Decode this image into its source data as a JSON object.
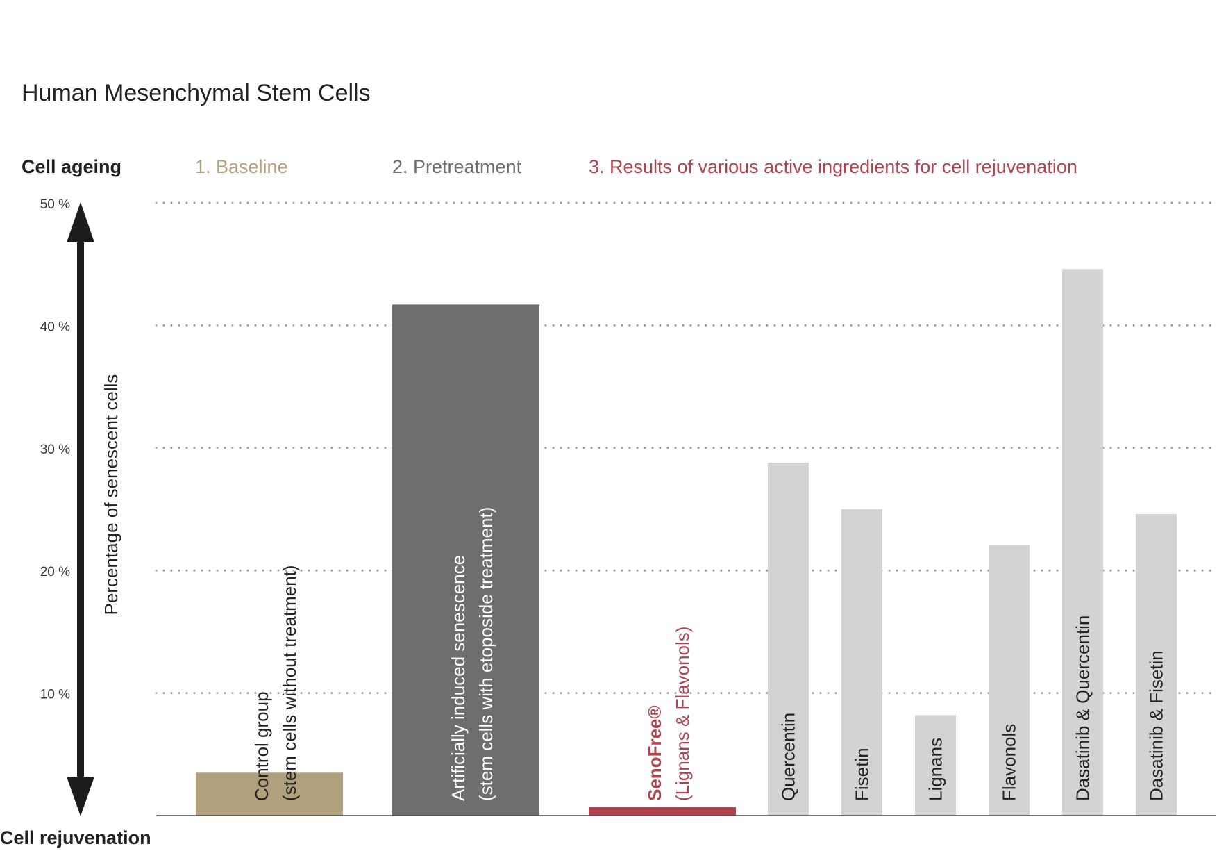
{
  "chart_data": {
    "type": "bar",
    "title": "Human Mesenchymal Stem Cells",
    "top_label": "Cell ageing",
    "bottom_label": "Cell rejuvenation",
    "ylabel": "Percentage of senescent cells",
    "ylim": [
      0,
      50
    ],
    "yticks": [
      "10 %",
      "20 %",
      "30 %",
      "40 %",
      "50 %"
    ],
    "ytick_values": [
      10,
      20,
      30,
      40,
      50
    ],
    "grid": "dotted horizontal",
    "groups": [
      {
        "label": "1. Baseline",
        "color": "#b0a07c"
      },
      {
        "label": "2. Pretreatment",
        "color": "#6f6e6e"
      },
      {
        "label": "3. Results of various active ingredients for cell rejuvenation",
        "color": "#b0434f"
      }
    ],
    "bars": [
      {
        "line1": "Control group",
        "line2": "(stem cells without treatment)",
        "value": 3.5,
        "color": "#b0a07c",
        "group": 0
      },
      {
        "line1": "Artificially induced senescence",
        "line2": "(stem cells with etoposide treatment)",
        "value": 41.7,
        "color": "#6f6e6e",
        "group": 1
      },
      {
        "line1": "SenoFree®",
        "line2": "(Lignans & Flavonols)",
        "value": 0.7,
        "color": "#b0434f",
        "group": 2
      },
      {
        "line1": "Quercentin",
        "line2": "",
        "value": 28.8,
        "color": "#d3d3d3",
        "group": 2
      },
      {
        "line1": "Fisetin",
        "line2": "",
        "value": 25.0,
        "color": "#d3d3d3",
        "group": 2
      },
      {
        "line1": "Lignans",
        "line2": "",
        "value": 8.2,
        "color": "#d3d3d3",
        "group": 2
      },
      {
        "line1": "Flavonols",
        "line2": "",
        "value": 22.1,
        "color": "#d3d3d3",
        "group": 2
      },
      {
        "line1": "Dasatinib & Quercentin",
        "line2": "",
        "value": 44.6,
        "color": "#d3d3d3",
        "group": 2
      },
      {
        "line1": "Dasatinib & Fisetin",
        "line2": "",
        "value": 24.6,
        "color": "#d3d3d3",
        "group": 2
      }
    ]
  }
}
